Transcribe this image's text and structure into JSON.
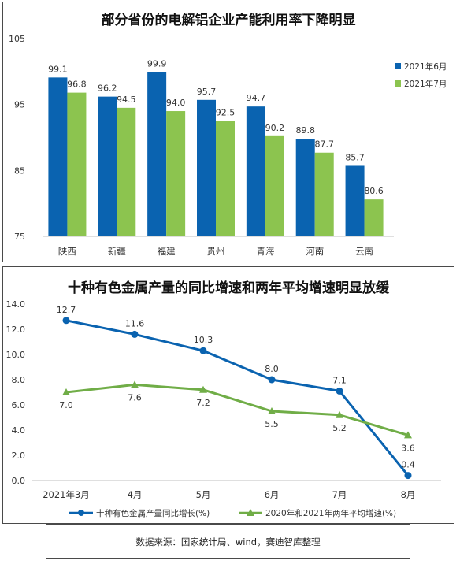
{
  "colors": {
    "blue": "#0a63b0",
    "green": "#8cc44f",
    "axis": "#bfbfbf",
    "text": "#333333"
  },
  "chart_data": [
    {
      "type": "bar",
      "title": "部分省份的电解铝企业产能利用率下降明显",
      "categories": [
        "陕西",
        "新疆",
        "福建",
        "贵州",
        "青海",
        "河南",
        "云南"
      ],
      "series": [
        {
          "name": "2021年6月",
          "values": [
            99.1,
            96.2,
            99.9,
            95.7,
            94.7,
            89.8,
            85.7
          ],
          "color": "#0a63b0"
        },
        {
          "name": "2021年7月",
          "values": [
            96.8,
            94.5,
            94.0,
            92.5,
            90.2,
            87.7,
            80.6
          ],
          "color": "#8cc44f"
        }
      ],
      "ylim": [
        75,
        105
      ],
      "yticks": [
        75,
        85,
        95,
        105
      ],
      "grid": false,
      "legend": "right"
    },
    {
      "type": "line",
      "title": "十种有色金属产量的同比增速和两年平均增速明显放缓",
      "categories": [
        "2021年3月",
        "4月",
        "5月",
        "6月",
        "7月",
        "8月"
      ],
      "series": [
        {
          "name": "十种有色金属产量同比增长(%)",
          "values": [
            12.7,
            11.6,
            10.3,
            8.0,
            7.1,
            0.4
          ],
          "color": "#0a63b0",
          "marker": "circle"
        },
        {
          "name": "2020年和2021年两年平均增速(%)",
          "values": [
            7.0,
            7.6,
            7.2,
            5.5,
            5.2,
            3.6
          ],
          "color": "#70ad47",
          "marker": "triangle"
        }
      ],
      "ylim": [
        0,
        14
      ],
      "yticks": [
        0.0,
        2.0,
        4.0,
        6.0,
        8.0,
        10.0,
        12.0,
        14.0
      ],
      "grid": false,
      "legend": "bottom"
    }
  ],
  "source_note": "数据来源：国家统计局、wind，赛迪智库整理"
}
